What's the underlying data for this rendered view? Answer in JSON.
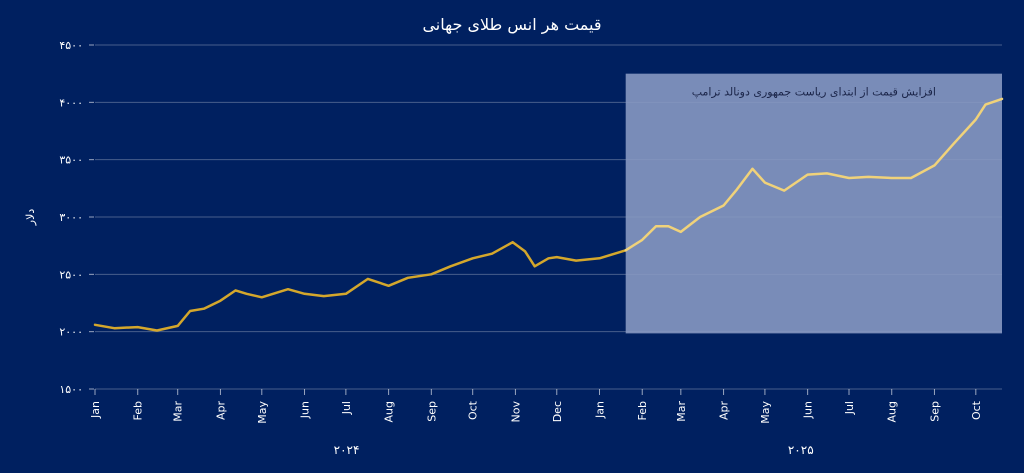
{
  "chart_data": {
    "type": "line",
    "title": "قیمت هر انس طلای جهانی",
    "ylabel": "دلار",
    "ylim": [
      1500,
      4500
    ],
    "yticks": [
      1500,
      2000,
      2500,
      3000,
      3500,
      4000,
      4500
    ],
    "ytick_labels": [
      "۱۵۰۰",
      "۲۰۰۰",
      "۲۵۰۰",
      "۳۰۰۰",
      "۳۵۰۰",
      "۴۰۰۰",
      "۴۵۰۰"
    ],
    "grid": true,
    "x_months": [
      "Jan",
      "Feb",
      "Mar",
      "Apr",
      "May",
      "Jun",
      "Jul",
      "Aug",
      "Sep",
      "Oct",
      "Nov",
      "Dec",
      "Jan",
      "Feb",
      "Mar",
      "Apr",
      "May",
      "Jun",
      "Jul",
      "Aug",
      "Sep",
      "Oct"
    ],
    "years": [
      "۲۰۲۴",
      "۲۰۲۵"
    ],
    "colors": {
      "background": "#002060",
      "line": "#D4A72C",
      "line_highlight": "#F0D27A",
      "highlight_band": "#8A9BC4"
    },
    "annotation": {
      "text": "افزایش قیمت از ابتدای ریاست جمهوری دونالد ترامپ",
      "start": "2025-01-20",
      "end": "2025-10-20"
    },
    "series": [
      {
        "x": [
          "2024-01-01",
          "2024-01-15",
          "2024-02-01",
          "2024-02-15",
          "2024-03-01",
          "2024-03-10",
          "2024-03-20",
          "2024-04-01",
          "2024-04-12",
          "2024-04-20",
          "2024-05-01",
          "2024-05-20",
          "2024-06-01",
          "2024-06-15",
          "2024-07-01",
          "2024-07-17",
          "2024-08-01",
          "2024-08-15",
          "2024-09-01",
          "2024-09-15",
          "2024-10-01",
          "2024-10-15",
          "2024-10-30",
          "2024-11-08",
          "2024-11-15",
          "2024-11-25",
          "2024-12-01",
          "2024-12-15",
          "2025-01-01",
          "2025-01-20",
          "2025-02-01",
          "2025-02-11",
          "2025-02-20",
          "2025-03-01",
          "2025-03-15",
          "2025-04-01",
          "2025-04-10",
          "2025-04-22",
          "2025-05-01",
          "2025-05-15",
          "2025-06-01",
          "2025-06-15",
          "2025-07-01",
          "2025-07-15",
          "2025-08-01",
          "2025-08-15",
          "2025-09-01",
          "2025-09-15",
          "2025-10-01",
          "2025-10-08",
          "2025-10-20"
        ],
        "values": [
          2060,
          2030,
          2040,
          2010,
          2050,
          2180,
          2200,
          2270,
          2360,
          2330,
          2300,
          2370,
          2330,
          2310,
          2330,
          2460,
          2400,
          2470,
          2500,
          2570,
          2640,
          2680,
          2780,
          2700,
          2570,
          2640,
          2650,
          2620,
          2640,
          2710,
          2800,
          2920,
          2920,
          2870,
          3000,
          3100,
          3230,
          3420,
          3300,
          3230,
          3370,
          3380,
          3340,
          3350,
          3340,
          3340,
          3450,
          3640,
          3850,
          3980,
          4030
        ]
      }
    ]
  }
}
